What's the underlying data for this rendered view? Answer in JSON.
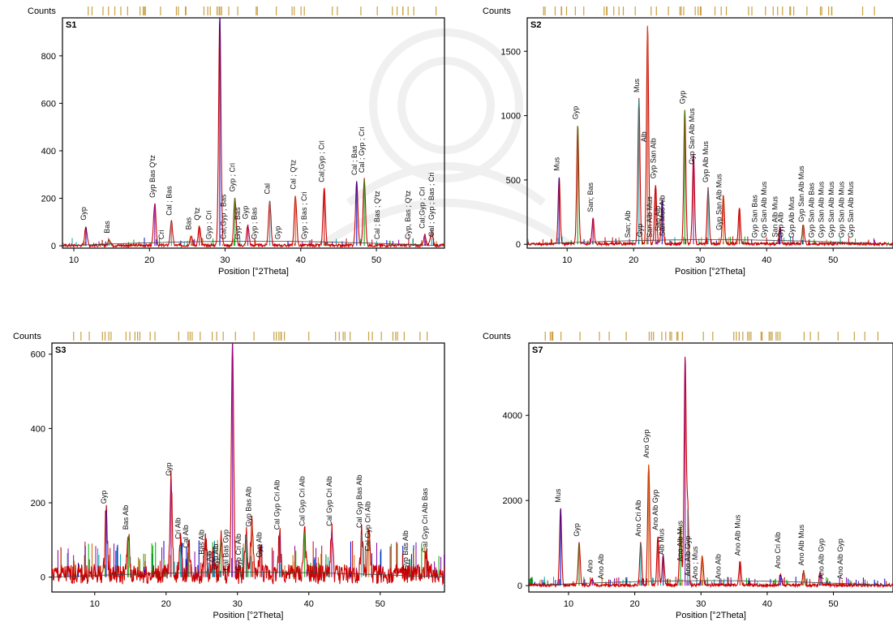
{
  "colors": {
    "line_main": "#cc0000",
    "frame": "#000000",
    "tick_marker": "#c8a040",
    "peak_palette": [
      "#0000cc",
      "#00aa00",
      "#8800aa",
      "#00aaaa",
      "#cc6600",
      "#cc0000"
    ]
  },
  "chart_data": [
    {
      "type": "line",
      "panel_label": "S1",
      "ylabel": "Counts",
      "xlabel": "Position [°2Theta]",
      "xlim": [
        8.5,
        59
      ],
      "ylim": [
        -10,
        960
      ],
      "x_ticks": [
        10,
        20,
        30,
        40,
        50
      ],
      "y_ticks": [
        0,
        200,
        400,
        600,
        800
      ],
      "grid": false,
      "series": [
        {
          "x": [
            11.6,
            14.7,
            20.7,
            22.9,
            25.5,
            26.6,
            29.3,
            31.3,
            33.0,
            35.9,
            39.3,
            43.1,
            47.4,
            48.4,
            56.4,
            57.3
          ],
          "y": [
            80,
            25,
            175,
            100,
            40,
            80,
            960,
            200,
            85,
            190,
            210,
            240,
            270,
            280,
            45,
            65
          ]
        }
      ],
      "annotations": [
        {
          "x": 11.6,
          "text": "Gyp"
        },
        {
          "x": 14.7,
          "text": "Bas"
        },
        {
          "x": 20.7,
          "text": "Gyp Bas Q'tz"
        },
        {
          "x": 21.9,
          "text": "Cri"
        },
        {
          "x": 22.9,
          "text": "Cal ; Bas"
        },
        {
          "x": 25.5,
          "text": "Bas"
        },
        {
          "x": 26.6,
          "text": "Q'tz"
        },
        {
          "x": 28.2,
          "text": "Gyp ; Cri"
        },
        {
          "x": 30.1,
          "text": "Cal;Gyp ; Bas"
        },
        {
          "x": 31.3,
          "text": "Gyp ; Cri"
        },
        {
          "x": 32.0,
          "text": "Gyp ; Bas"
        },
        {
          "x": 33.0,
          "text": "Gyp"
        },
        {
          "x": 34.2,
          "text": "Gyp ; Bas"
        },
        {
          "x": 35.9,
          "text": "Cal"
        },
        {
          "x": 37.3,
          "text": "Gyp"
        },
        {
          "x": 39.3,
          "text": "Cal ; Q'tz"
        },
        {
          "x": 40.8,
          "text": "Gyp ; Bas ; Cri"
        },
        {
          "x": 43.1,
          "text": "Cal;Gyp ; Cri"
        },
        {
          "x": 47.4,
          "text": "Cal ; Bas"
        },
        {
          "x": 48.4,
          "text": "Cal ; Gyp ; Cri"
        },
        {
          "x": 50.4,
          "text": "Cal ; Bas ; Q'tz"
        },
        {
          "x": 54.5,
          "text": "Gyp, Bas ; Q'tz"
        },
        {
          "x": 56.4,
          "text": "Cal;Gyp ; Cri"
        },
        {
          "x": 57.6,
          "text": "Cal ; Gyp ; Bas ; Cri"
        }
      ]
    },
    {
      "type": "line",
      "panel_label": "S2",
      "ylabel": "Counts",
      "xlabel": "Position [°2Theta]",
      "xlim": [
        4,
        59
      ],
      "ylim": [
        -30,
        1760
      ],
      "x_ticks": [
        10,
        20,
        30,
        40,
        50
      ],
      "y_ticks": [
        0,
        500,
        1000,
        1500
      ],
      "grid": false,
      "series": [
        {
          "x": [
            8.8,
            11.6,
            13.9,
            20.8,
            22.1,
            23.3,
            24.3,
            27.7,
            29.0,
            31.2,
            33.5,
            35.9,
            42.0,
            45.5
          ],
          "y": [
            520,
            920,
            200,
            1130,
            1700,
            460,
            340,
            1040,
            700,
            430,
            380,
            280,
            130,
            150
          ]
        }
      ],
      "annotations": [
        {
          "x": 8.8,
          "text": "Mus"
        },
        {
          "x": 11.6,
          "text": "Gyp"
        },
        {
          "x": 13.9,
          "text": "San; Bas"
        },
        {
          "x": 19.5,
          "text": "San; Alb"
        },
        {
          "x": 20.8,
          "text": "Mus"
        },
        {
          "x": 21.3,
          "text": "Gyp"
        },
        {
          "x": 21.9,
          "text": "Alb"
        },
        {
          "x": 22.8,
          "text": "San Alb Mus"
        },
        {
          "x": 23.3,
          "text": "Gyp San Alb"
        },
        {
          "x": 24.0,
          "text": "San Alb"
        },
        {
          "x": 24.7,
          "text": "San Mus Alb"
        },
        {
          "x": 27.7,
          "text": "Gyp"
        },
        {
          "x": 29.1,
          "text": "Gyp San Alb Mus"
        },
        {
          "x": 31.2,
          "text": "Gyp Alb Mus"
        },
        {
          "x": 33.2,
          "text": "Gyp San Alb Mus"
        },
        {
          "x": 38.6,
          "text": "Gyp San Bas"
        },
        {
          "x": 40.0,
          "text": "Gyp San Alb Mus"
        },
        {
          "x": 41.6,
          "text": "San Alb Mus"
        },
        {
          "x": 42.5,
          "text": "Gyp Alb"
        },
        {
          "x": 44.1,
          "text": "Gyp Alb Mus"
        },
        {
          "x": 45.6,
          "text": "Gyp San Alb Mus"
        },
        {
          "x": 47.1,
          "text": "Gyp San Alb Bas"
        },
        {
          "x": 48.6,
          "text": "Gyp San Alb Mus"
        },
        {
          "x": 50.1,
          "text": "Gyp San Alb Mus"
        },
        {
          "x": 51.6,
          "text": "Gyp San Alb Mus"
        },
        {
          "x": 53.0,
          "text": "Gyp San Alb Mus"
        }
      ]
    },
    {
      "type": "line",
      "panel_label": "S3",
      "ylabel": "Counts",
      "xlabel": "Position [°2Theta]",
      "xlim": [
        4,
        59
      ],
      "ylim": [
        -40,
        630
      ],
      "x_ticks": [
        10,
        20,
        30,
        40,
        50
      ],
      "y_ticks": [
        0,
        200,
        400,
        600
      ],
      "grid": false,
      "series": [
        {
          "x": [
            11.6,
            14.7,
            20.7,
            22.0,
            23.2,
            25.5,
            26.6,
            27.7,
            29.3,
            31.2,
            32.0,
            33.2,
            35.9,
            39.4,
            43.2,
            47.4,
            48.4,
            56.5
          ],
          "y": [
            180,
            110,
            255,
            85,
            75,
            100,
            55,
            95,
            630,
            110,
            145,
            80,
            110,
            120,
            120,
            115,
            120,
            60
          ]
        }
      ],
      "annotations": [
        {
          "x": 11.6,
          "text": "Gyp"
        },
        {
          "x": 14.7,
          "text": "Bas  Alb"
        },
        {
          "x": 20.7,
          "text": "Gyp"
        },
        {
          "x": 22.0,
          "text": "Cri  Alb"
        },
        {
          "x": 23.1,
          "text": "Cal  Alb"
        },
        {
          "x": 25.3,
          "text": "Bas  Alb"
        },
        {
          "x": 26.4,
          "text": "Alb"
        },
        {
          "x": 27.3,
          "text": "Gyp Alb"
        },
        {
          "x": 28.7,
          "text": "Cal Bas Gyp"
        },
        {
          "x": 30.5,
          "text": "Gyp Cri  Alb"
        },
        {
          "x": 31.9,
          "text": "Gyp Bas Alb"
        },
        {
          "x": 33.4,
          "text": "Gyp Alb"
        },
        {
          "x": 35.9,
          "text": "Cal Gyp Cri  Alb"
        },
        {
          "x": 39.4,
          "text": "Cal Gyp Cri  Alb"
        },
        {
          "x": 43.2,
          "text": "Cal Gyp Cri  Alb"
        },
        {
          "x": 47.4,
          "text": "Cal Gyp  Bas  Alb"
        },
        {
          "x": 48.6,
          "text": "Cal Gyp Cri  Alb"
        },
        {
          "x": 53.9,
          "text": "Gyp  Bas  Alb"
        },
        {
          "x": 56.6,
          "text": "Cal Gyp Cri  Alb Bas"
        }
      ]
    },
    {
      "type": "line",
      "panel_label": "S7",
      "ylabel": "Counts",
      "xlabel": "Position [°2Theta]",
      "xlim": [
        4,
        59
      ],
      "ylim": [
        -150,
        5700
      ],
      "x_ticks": [
        10,
        20,
        30,
        40,
        50
      ],
      "y_ticks": [
        0,
        2000,
        4000
      ],
      "grid": false,
      "series": [
        {
          "x": [
            8.8,
            11.6,
            13.6,
            20.9,
            22.1,
            23.5,
            24.3,
            26.9,
            27.6,
            28.0,
            30.2,
            35.9,
            42.0,
            45.5,
            48.0
          ],
          "y": [
            1800,
            1000,
            150,
            1000,
            2850,
            1150,
            700,
            1400,
            5300,
            1800,
            700,
            550,
            250,
            320,
            300
          ]
        }
      ],
      "annotations": [
        {
          "x": 8.8,
          "text": "Mus"
        },
        {
          "x": 11.6,
          "text": "Gyp"
        },
        {
          "x": 13.6,
          "text": "Ano"
        },
        {
          "x": 15.3,
          "text": "Ano Alb"
        },
        {
          "x": 20.9,
          "text": "Ano Cri  Alb"
        },
        {
          "x": 22.1,
          "text": "Ano Gyp"
        },
        {
          "x": 23.5,
          "text": "Ano Alb Gyp"
        },
        {
          "x": 24.4,
          "text": "Alb Mus"
        },
        {
          "x": 27.2,
          "text": "Ano Alb Mus"
        },
        {
          "x": 28.4,
          "text": "Ano Alb Gyp"
        },
        {
          "x": 29.5,
          "text": "Ano ; Mus"
        },
        {
          "x": 33.0,
          "text": "Ano Alb"
        },
        {
          "x": 35.9,
          "text": "Ano Alb Mus"
        },
        {
          "x": 42.0,
          "text": "Ano Cri  Alb"
        },
        {
          "x": 45.5,
          "text": "Ano Alb Mus"
        },
        {
          "x": 48.5,
          "text": "Ano Alb Gyp"
        },
        {
          "x": 51.4,
          "text": "Ano Alb Gyp"
        }
      ]
    }
  ]
}
